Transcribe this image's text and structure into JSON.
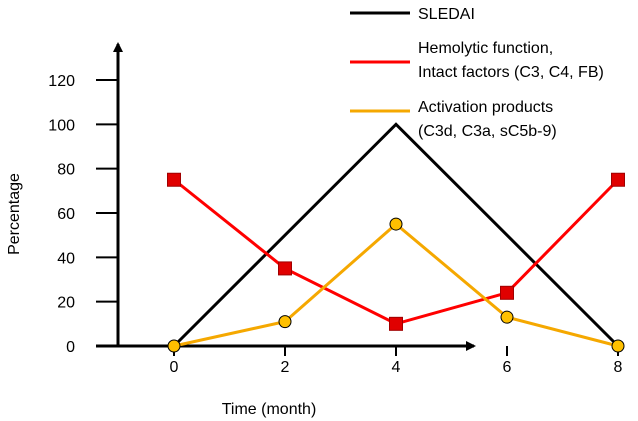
{
  "chart_data": {
    "type": "line",
    "x": [
      0,
      2,
      4,
      6,
      8
    ],
    "xlabel": "Time (month)",
    "ylabel": "Percentage",
    "xlim": [
      -3.2,
      10.8
    ],
    "ylim": [
      0,
      120
    ],
    "xticks": [
      0,
      2,
      4,
      6,
      8
    ],
    "yticks": [
      0,
      20,
      40,
      60,
      80,
      100,
      120
    ],
    "grid": false,
    "legend_position": "top-right",
    "series": [
      {
        "name": "SLEDAI",
        "values": [
          0,
          null,
          100,
          null,
          0
        ],
        "color": "#000000",
        "marker": "none"
      },
      {
        "name_lines": [
          "Hemolytic function,",
          "Intact factors (C3, C4, FB)"
        ],
        "values": [
          75,
          35,
          10,
          24,
          75
        ],
        "color": "#ff0000",
        "marker": "square",
        "marker_color": "#e00000"
      },
      {
        "name_lines": [
          "Activation products",
          "(C3d, C3a, sC5b-9)"
        ],
        "values": [
          0,
          11,
          55,
          13,
          0
        ],
        "color": "#f5a800",
        "marker": "circle",
        "marker_color": "#ffc000"
      }
    ]
  }
}
